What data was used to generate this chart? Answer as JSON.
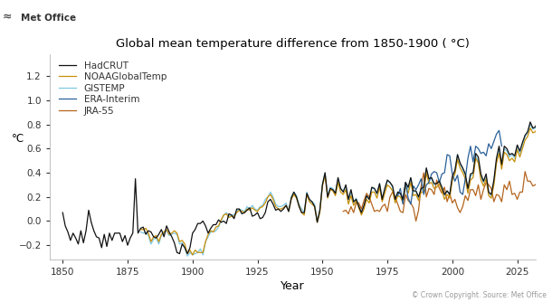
{
  "title": "Global mean temperature difference from 1850-1900 ( °C)",
  "xlabel": "Year",
  "ylabel": "°C",
  "logo_text": "Met Office",
  "copyright_text": "© Crown Copyright. Source: Met Office",
  "xlim": [
    1845,
    2032
  ],
  "ylim": [
    -0.32,
    1.38
  ],
  "yticks": [
    -0.2,
    0.0,
    0.2,
    0.4,
    0.6,
    0.8,
    1.0,
    1.2
  ],
  "xticks": [
    1850,
    1875,
    1900,
    1925,
    1950,
    1975,
    2000,
    2025
  ],
  "series_colors": {
    "HadCRUT": "#111111",
    "NOAAGlobalTemp": "#c8900a",
    "GISTEMP": "#7ec8e3",
    "ERA-Interim": "#2a6099",
    "JRA-55": "#b5651d"
  },
  "background_color": "#ffffff",
  "grid": false,
  "linewidth": 0.9
}
